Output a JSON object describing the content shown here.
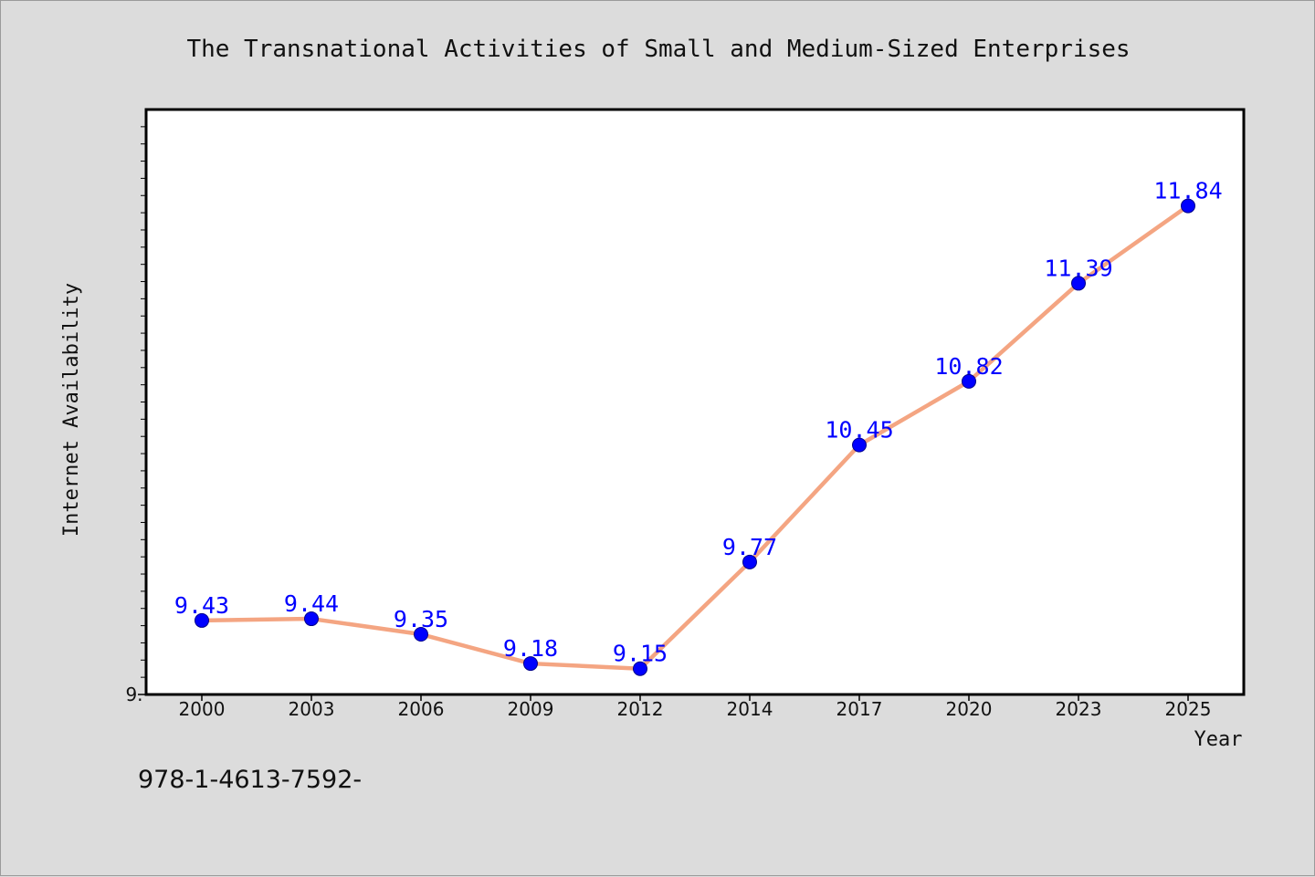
{
  "chart_data": {
    "type": "line",
    "title": "The Transnational Activities of Small and Medium-Sized Enterprises",
    "xlabel": "Year",
    "ylabel": "Internet Availability",
    "categories": [
      "2000",
      "2003",
      "2006",
      "2009",
      "2012",
      "2014",
      "2017",
      "2020",
      "2023",
      "2025"
    ],
    "series": [
      {
        "values": [
          9.43,
          9.44,
          9.35,
          9.18,
          9.15,
          9.77,
          10.45,
          10.82,
          11.39,
          11.84
        ]
      }
    ],
    "data_labels": [
      "9.43",
      "9.44",
      "9.35",
      "9.18",
      "9.15",
      "9.77",
      "10.45",
      "10.82",
      "11.39",
      "11.84"
    ],
    "ylim": [
      9.0,
      12.4
    ],
    "y_tick_labels": [
      "9."
    ],
    "grid": false,
    "line_color": "#f4a582",
    "marker_color": "#0000ff",
    "label_color": "#0000ff",
    "plot_background": "#ffffff",
    "figure_background": "#dcdcdc"
  },
  "footer": {
    "text": "978-1-4613-7592-"
  }
}
